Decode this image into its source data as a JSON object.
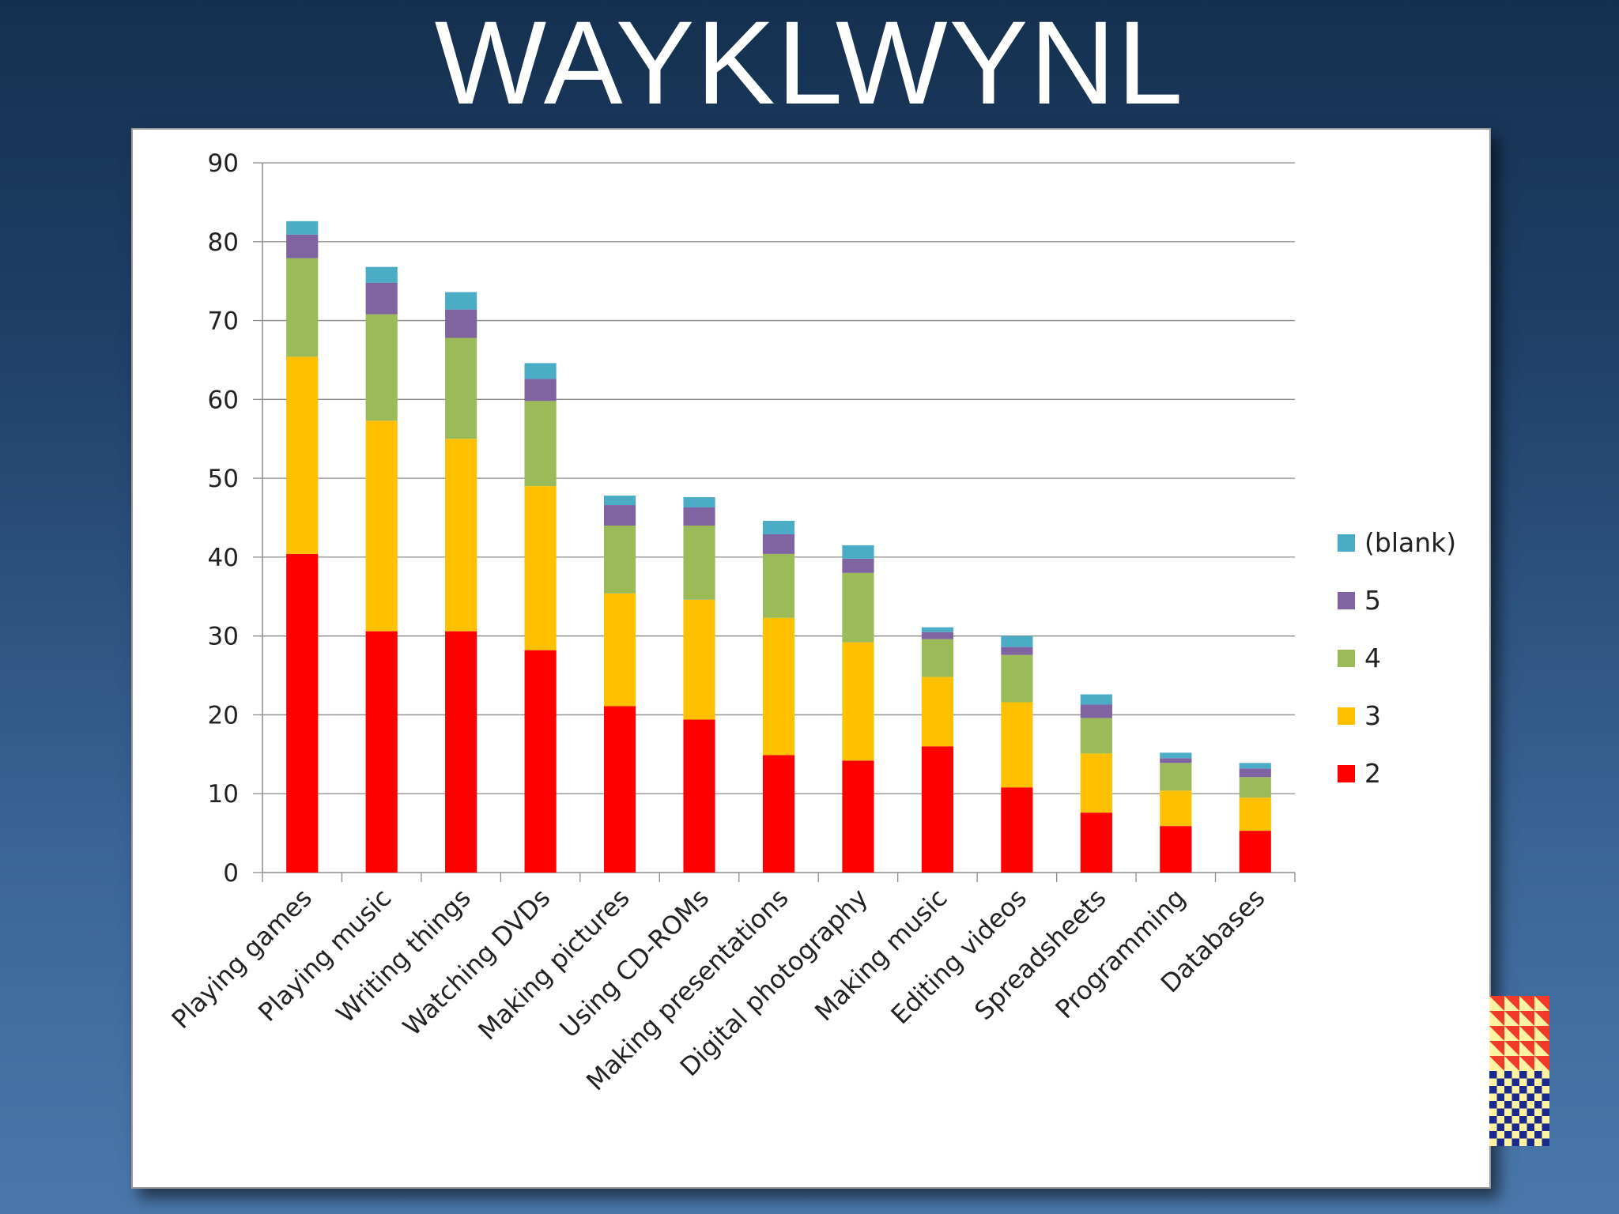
{
  "slide": {
    "title": "WAYKLWYNL"
  },
  "colors": {
    "blank": "#4bacc6",
    "5": "#8064a2",
    "4": "#9bbb59",
    "3": "#ffc000",
    "2": "#ff0000",
    "logo_red": "#f23a2a",
    "logo_yellow": "#fff2a0",
    "logo_blue": "#1a2a8c"
  },
  "chart_data": {
    "type": "bar",
    "stacked": true,
    "title": "",
    "xlabel": "",
    "ylabel": "",
    "ylim": [
      0,
      90
    ],
    "yticks": [
      0,
      10,
      20,
      30,
      40,
      50,
      60,
      70,
      80,
      90
    ],
    "grid": true,
    "legend_position": "right",
    "categories": [
      "Playing games",
      "Playing music",
      "Writing things",
      "Watching DVDs",
      "Making pictures",
      "Using CD-ROMs",
      "Making presentations",
      "Digital photography",
      "Making music",
      "Editing videos",
      "Spreadsheets",
      "Programming",
      "Databases"
    ],
    "series": [
      {
        "name": "2",
        "color_key": "2",
        "values": [
          40.4,
          30.6,
          30.6,
          28.2,
          21.1,
          19.4,
          14.9,
          14.2,
          16.0,
          10.8,
          7.6,
          5.9,
          5.3
        ]
      },
      {
        "name": "3",
        "color_key": "3",
        "values": [
          25.0,
          26.7,
          24.4,
          20.8,
          14.3,
          15.2,
          17.4,
          15.0,
          8.8,
          10.8,
          7.5,
          4.5,
          4.2
        ]
      },
      {
        "name": "4",
        "color_key": "4",
        "values": [
          12.5,
          13.5,
          12.8,
          10.8,
          8.6,
          9.4,
          8.1,
          8.8,
          4.8,
          6.0,
          4.5,
          3.5,
          2.6
        ]
      },
      {
        "name": "5",
        "color_key": "5",
        "values": [
          3.0,
          4.0,
          3.6,
          2.8,
          2.6,
          2.3,
          2.5,
          1.8,
          0.9,
          1.0,
          1.7,
          0.6,
          1.1
        ]
      },
      {
        "name": "(blank)",
        "color_key": "blank",
        "values": [
          1.7,
          2.0,
          2.2,
          2.0,
          1.2,
          1.3,
          1.7,
          1.7,
          0.6,
          1.4,
          1.3,
          0.7,
          0.7
        ]
      }
    ],
    "legend": [
      "(blank)",
      "5",
      "4",
      "3",
      "2"
    ]
  }
}
